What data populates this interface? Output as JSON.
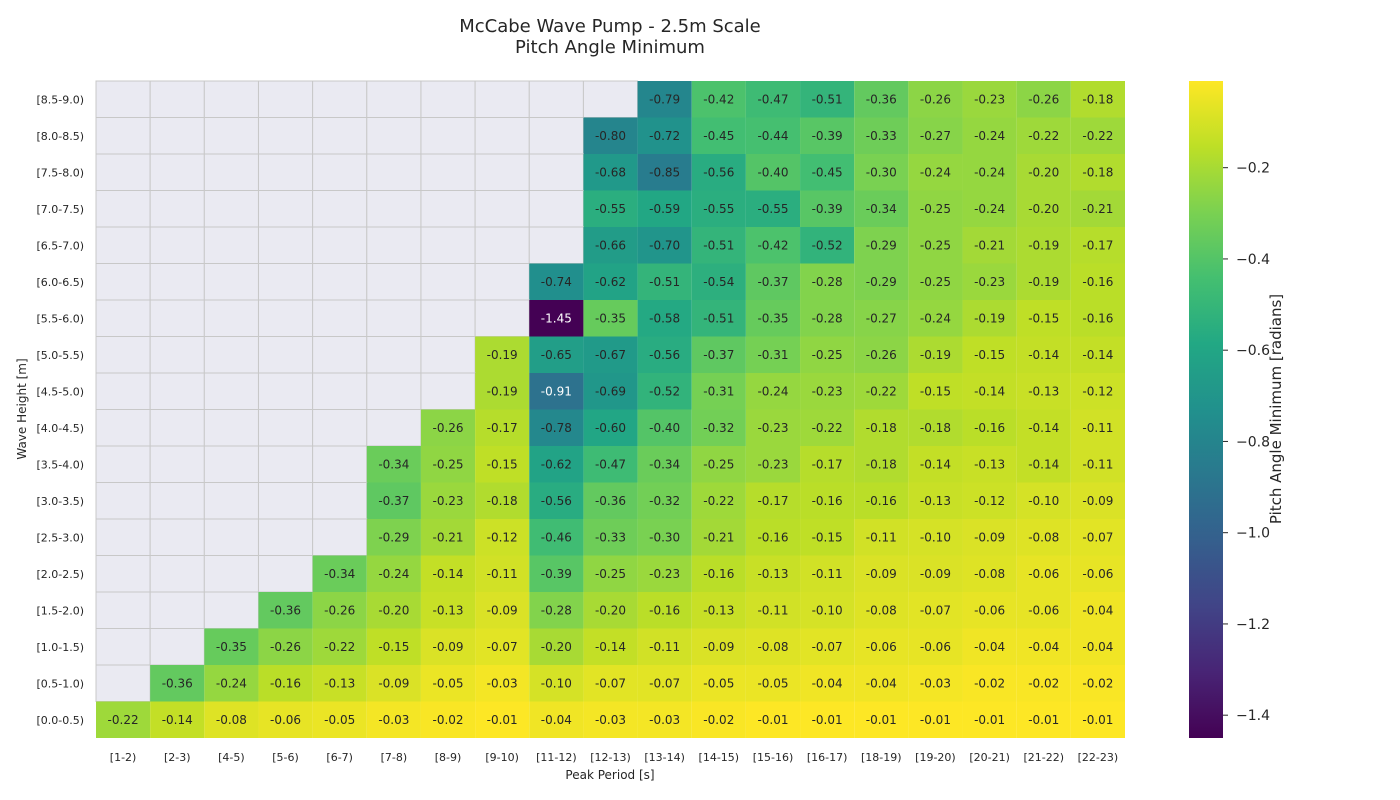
{
  "chart_data": {
    "type": "heatmap",
    "title": "McCabe Wave Pump - 2.5m Scale",
    "subtitle": "Pitch Angle Minimum",
    "xlabel": "Peak Period [s]",
    "ylabel": "Wave Height [m]",
    "x_categories": [
      "[1-2)",
      "[2-3)",
      "[4-5)",
      "[5-6)",
      "[6-7)",
      "[7-8)",
      "[8-9)",
      "[9-10)",
      "[11-12)",
      "[12-13)",
      "[13-14)",
      "[14-15)",
      "[15-16)",
      "[16-17)",
      "[18-19)",
      "[19-20)",
      "[20-21)",
      "[21-22)",
      "[22-23)"
    ],
    "y_categories": [
      "[8.5-9.0)",
      "[8.0-8.5)",
      "[7.5-8.0)",
      "[7.0-7.5)",
      "[6.5-7.0)",
      "[6.0-6.5)",
      "[5.5-6.0)",
      "[5.0-5.5)",
      "[4.5-5.0)",
      "[4.0-4.5)",
      "[3.5-4.0)",
      "[3.0-3.5)",
      "[2.5-3.0)",
      "[2.0-2.5)",
      "[1.5-2.0)",
      "[1.0-1.5)",
      "[0.5-1.0)",
      "[0.0-0.5)"
    ],
    "values": [
      [
        null,
        null,
        null,
        null,
        null,
        null,
        null,
        null,
        null,
        null,
        -0.79,
        -0.42,
        -0.47,
        -0.51,
        -0.36,
        -0.26,
        -0.23,
        -0.26,
        -0.18
      ],
      [
        null,
        null,
        null,
        null,
        null,
        null,
        null,
        null,
        null,
        -0.8,
        -0.72,
        -0.45,
        -0.44,
        -0.39,
        -0.33,
        -0.27,
        -0.24,
        -0.22,
        -0.22
      ],
      [
        null,
        null,
        null,
        null,
        null,
        null,
        null,
        null,
        null,
        -0.68,
        -0.85,
        -0.56,
        -0.4,
        -0.45,
        -0.3,
        -0.24,
        -0.24,
        -0.2,
        -0.18
      ],
      [
        null,
        null,
        null,
        null,
        null,
        null,
        null,
        null,
        null,
        -0.55,
        -0.59,
        -0.55,
        -0.55,
        -0.39,
        -0.34,
        -0.25,
        -0.24,
        -0.2,
        -0.21
      ],
      [
        null,
        null,
        null,
        null,
        null,
        null,
        null,
        null,
        null,
        -0.66,
        -0.7,
        -0.51,
        -0.42,
        -0.52,
        -0.29,
        -0.25,
        -0.21,
        -0.19,
        -0.17
      ],
      [
        null,
        null,
        null,
        null,
        null,
        null,
        null,
        null,
        -0.74,
        -0.62,
        -0.51,
        -0.54,
        -0.37,
        -0.28,
        -0.29,
        -0.25,
        -0.23,
        -0.19,
        -0.16
      ],
      [
        null,
        null,
        null,
        null,
        null,
        null,
        null,
        null,
        -1.45,
        -0.35,
        -0.58,
        -0.51,
        -0.35,
        -0.28,
        -0.27,
        -0.24,
        -0.19,
        -0.15,
        -0.16
      ],
      [
        null,
        null,
        null,
        null,
        null,
        null,
        null,
        -0.19,
        -0.65,
        -0.67,
        -0.56,
        -0.37,
        -0.31,
        -0.25,
        -0.26,
        -0.19,
        -0.15,
        -0.14,
        -0.14
      ],
      [
        null,
        null,
        null,
        null,
        null,
        null,
        null,
        -0.19,
        -0.91,
        -0.69,
        -0.52,
        -0.31,
        -0.24,
        -0.23,
        -0.22,
        -0.15,
        -0.14,
        -0.13,
        -0.12
      ],
      [
        null,
        null,
        null,
        null,
        null,
        null,
        -0.26,
        -0.17,
        -0.78,
        -0.6,
        -0.4,
        -0.32,
        -0.23,
        -0.22,
        -0.18,
        -0.18,
        -0.16,
        -0.14,
        -0.11
      ],
      [
        null,
        null,
        null,
        null,
        null,
        -0.34,
        -0.25,
        -0.15,
        -0.62,
        -0.47,
        -0.34,
        -0.25,
        -0.23,
        -0.17,
        -0.18,
        -0.14,
        -0.13,
        -0.14,
        -0.11
      ],
      [
        null,
        null,
        null,
        null,
        null,
        -0.37,
        -0.23,
        -0.18,
        -0.56,
        -0.36,
        -0.32,
        -0.22,
        -0.17,
        -0.16,
        -0.16,
        -0.13,
        -0.12,
        -0.1,
        -0.09
      ],
      [
        null,
        null,
        null,
        null,
        null,
        -0.29,
        -0.21,
        -0.12,
        -0.46,
        -0.33,
        -0.3,
        -0.21,
        -0.16,
        -0.15,
        -0.11,
        -0.1,
        -0.09,
        -0.08,
        -0.07
      ],
      [
        null,
        null,
        null,
        null,
        -0.34,
        -0.24,
        -0.14,
        -0.11,
        -0.39,
        -0.25,
        -0.23,
        -0.16,
        -0.13,
        -0.11,
        -0.09,
        -0.09,
        -0.08,
        -0.06,
        -0.06
      ],
      [
        null,
        null,
        null,
        -0.36,
        -0.26,
        -0.2,
        -0.13,
        -0.09,
        -0.28,
        -0.2,
        -0.16,
        -0.13,
        -0.11,
        -0.1,
        -0.08,
        -0.07,
        -0.06,
        -0.06,
        -0.04
      ],
      [
        null,
        null,
        -0.35,
        -0.26,
        -0.22,
        -0.15,
        -0.09,
        -0.07,
        -0.2,
        -0.14,
        -0.11,
        -0.09,
        -0.08,
        -0.07,
        -0.06,
        -0.06,
        -0.04,
        -0.04,
        -0.04
      ],
      [
        null,
        -0.36,
        -0.24,
        -0.16,
        -0.13,
        -0.09,
        -0.05,
        -0.03,
        -0.1,
        -0.07,
        -0.07,
        -0.05,
        -0.05,
        -0.04,
        -0.04,
        -0.03,
        -0.02,
        -0.02,
        -0.02
      ],
      [
        -0.22,
        -0.14,
        -0.08,
        -0.06,
        -0.05,
        -0.03,
        -0.02,
        -0.01,
        -0.04,
        -0.03,
        -0.03,
        -0.02,
        -0.01,
        -0.01,
        -0.01,
        -0.01,
        -0.01,
        -0.01,
        -0.01
      ]
    ],
    "colorbar": {
      "label": "Pitch Angle Minimum [radians]",
      "colormap": "viridis",
      "range": [
        -1.45,
        -0.01
      ],
      "ticks": [
        -0.2,
        -0.4,
        -0.6,
        -0.8,
        -1.0,
        -1.2,
        -1.4
      ],
      "tick_labels": [
        "−0.2",
        "−0.4",
        "−0.6",
        "−0.8",
        "−1.0",
        "−1.2",
        "−1.4"
      ]
    },
    "missing_color": "#eaeaf2",
    "grid_color": "#c8c8c8"
  }
}
